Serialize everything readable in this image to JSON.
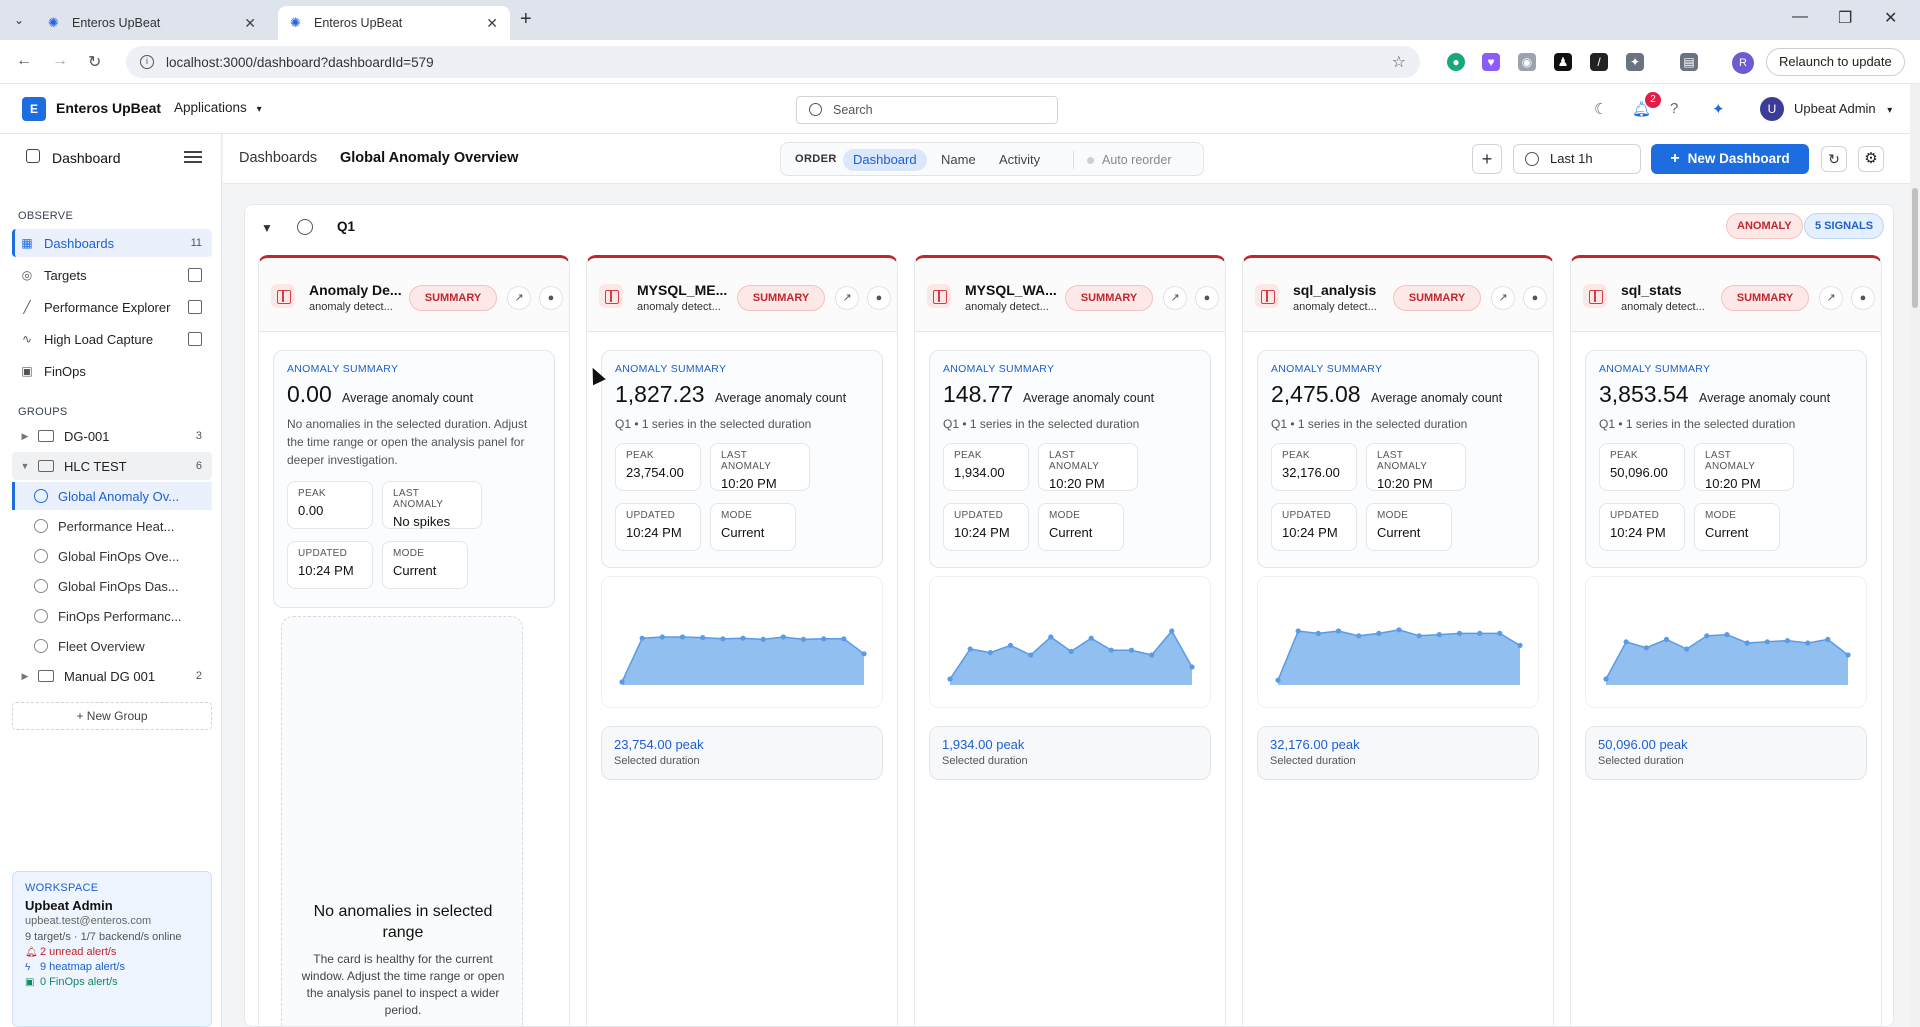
{
  "browser": {
    "tabs": [
      {
        "title": "Enteros UpBeat"
      },
      {
        "title": "Enteros UpBeat"
      }
    ],
    "url": "localhost:3000/dashboard?dashboardId=579",
    "relaunch": "Relaunch to update",
    "profile_initial": "R"
  },
  "header": {
    "app_name": "Enteros UpBeat",
    "logo_letter": "E",
    "applications": "Applications",
    "search_placeholder": "Search",
    "notifications": "2",
    "user_initial": "U",
    "user": "Upbeat Admin"
  },
  "sidebar": {
    "title": "Dashboard",
    "observe_label": "OBSERVE",
    "observe": [
      {
        "label": "Dashboards",
        "count": "11",
        "icon": "grid-icon"
      },
      {
        "label": "Targets",
        "icon": "target-icon"
      },
      {
        "label": "Performance Explorer",
        "icon": "trend-icon"
      },
      {
        "label": "High Load Capture",
        "icon": "pulse-icon"
      },
      {
        "label": "FinOps",
        "icon": "money-icon"
      }
    ],
    "groups_label": "GROUPS",
    "groups": [
      {
        "label": "DG-001",
        "count": "3"
      },
      {
        "label": "HLC TEST",
        "count": "6"
      },
      {
        "label": "Manual DG 001",
        "count": "2"
      }
    ],
    "hlc_items": [
      "Global Anomaly Ov...",
      "Performance Heat...",
      "Global FinOps Ove...",
      "Global FinOps Das...",
      "FinOps Performanc...",
      "Fleet Overview"
    ],
    "new_group": "+ New Group",
    "workspace": {
      "label": "WORKSPACE",
      "name": "Upbeat Admin",
      "email": "upbeat.test@enteros.com",
      "status": "9 target/s · 1/7 backend/s online",
      "alerts": [
        {
          "text": "2 unread alert/s",
          "color": "#c0262d"
        },
        {
          "text": "9 heatmap alert/s",
          "color": "#1d5fd0"
        },
        {
          "text": "0 FinOps alert/s",
          "color": "#0f8a5f"
        }
      ]
    }
  },
  "topbar": {
    "crumb1": "Dashboards",
    "crumb2": "Global Anomaly Overview",
    "order_label": "ORDER",
    "order_options": [
      "Dashboard",
      "Name",
      "Activity"
    ],
    "auto_reorder": "Auto reorder",
    "time_range": "Last 1h",
    "new_dashboard": "New Dashboard"
  },
  "panel": {
    "title": "Q1",
    "badge_anomaly": "ANOMALY",
    "badge_signals": "5 SIGNALS"
  },
  "cards": [
    {
      "title": "Anomaly De...",
      "subtitle": "anomaly detect...",
      "badge": "SUMMARY",
      "label": "ANOMALY SUMMARY",
      "value": "0.00",
      "unit": "Average anomaly count",
      "desc": "No anomalies in the selected duration. Adjust the time range or open the analysis panel for deeper investigation.",
      "peak": "0.00",
      "last_anomaly": "No spikes",
      "updated": "10:24 PM",
      "mode": "Current",
      "empty_title": "No anomalies in selected range",
      "empty_desc": "The card is healthy for the current window. Adjust the time range or open the analysis panel to inspect a wider period."
    },
    {
      "title": "MYSQL_ME...",
      "subtitle": "anomaly detect...",
      "badge": "SUMMARY",
      "label": "ANOMALY SUMMARY",
      "value": "1,827.23",
      "unit": "Average anomaly count",
      "desc": "Q1 • 1 series in the selected duration",
      "peak": "23,754.00",
      "last_anomaly": "10:20 PM",
      "updated": "10:24 PM",
      "mode": "Current",
      "peak_text": "23,754.00 peak",
      "peak_sub": "Selected duration",
      "spark": [
        0.05,
        0.78,
        0.8,
        0.8,
        0.79,
        0.77,
        0.78,
        0.76,
        0.8,
        0.76,
        0.77,
        0.77,
        0.52
      ]
    },
    {
      "title": "MYSQL_WA...",
      "subtitle": "anomaly detect...",
      "badge": "SUMMARY",
      "label": "ANOMALY SUMMARY",
      "value": "148.77",
      "unit": "Average anomaly count",
      "desc": "Q1 • 1 series in the selected duration",
      "peak": "1,934.00",
      "last_anomaly": "10:20 PM",
      "updated": "10:24 PM",
      "mode": "Current",
      "peak_text": "1,934.00 peak",
      "peak_sub": "Selected duration",
      "spark": [
        0.1,
        0.6,
        0.54,
        0.66,
        0.5,
        0.8,
        0.56,
        0.78,
        0.58,
        0.58,
        0.5,
        0.9,
        0.3
      ]
    },
    {
      "title": "sql_analysis",
      "subtitle": "anomaly detect...",
      "badge": "SUMMARY",
      "label": "ANOMALY SUMMARY",
      "value": "2,475.08",
      "unit": "Average anomaly count",
      "desc": "Q1 • 1 series in the selected duration",
      "peak": "32,176.00",
      "last_anomaly": "10:20 PM",
      "updated": "10:24 PM",
      "mode": "Current",
      "peak_text": "32,176.00 peak",
      "peak_sub": "Selected duration",
      "spark": [
        0.08,
        0.9,
        0.86,
        0.9,
        0.82,
        0.86,
        0.92,
        0.82,
        0.84,
        0.86,
        0.86,
        0.86,
        0.66
      ]
    },
    {
      "title": "sql_stats",
      "subtitle": "anomaly detect...",
      "badge": "SUMMARY",
      "label": "ANOMALY SUMMARY",
      "value": "3,853.54",
      "unit": "Average anomaly count",
      "desc": "Q1 • 1 series in the selected duration",
      "peak": "50,096.00",
      "last_anomaly": "10:20 PM",
      "updated": "10:24 PM",
      "mode": "Current",
      "peak_text": "50,096.00 peak",
      "peak_sub": "Selected duration",
      "spark": [
        0.1,
        0.72,
        0.62,
        0.76,
        0.6,
        0.82,
        0.84,
        0.7,
        0.72,
        0.74,
        0.7,
        0.76,
        0.5
      ]
    }
  ],
  "stat_labels": {
    "peak": "PEAK",
    "last_anomaly": "LAST ANOMALY",
    "updated": "UPDATED",
    "mode": "MODE"
  },
  "colors": {
    "accent": "#1d6ce0",
    "anomaly": "#c0262d",
    "spark_fill": "#90bff0",
    "spark_line": "#5a9be6"
  }
}
